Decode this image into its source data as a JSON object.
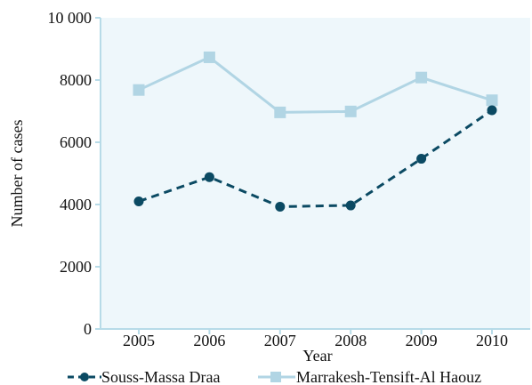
{
  "chart_data": {
    "type": "line",
    "title": "",
    "xlabel": "Year",
    "ylabel": "Number of cases",
    "x": [
      "2005",
      "2006",
      "2007",
      "2008",
      "2009",
      "2010"
    ],
    "ylim": [
      0,
      10000
    ],
    "y_ticks": [
      "0",
      "2000",
      "4000",
      "6000",
      "8000",
      "10 000"
    ],
    "grid": false,
    "legend_position": "bottom",
    "plot_background": "#eef7fb",
    "axis_color": "#b7dbe8",
    "series": [
      {
        "name": "Souss-Massa Draa",
        "values": [
          4100,
          4880,
          3930,
          3970,
          5470,
          7030
        ],
        "color": "#0b4a63",
        "line_style": "dashed",
        "marker": "circle"
      },
      {
        "name": "Marrakesh-Tensift-Al Haouz",
        "values": [
          7680,
          8730,
          6960,
          6990,
          8080,
          7350
        ],
        "color": "#b1d5e4",
        "line_style": "solid",
        "marker": "square"
      }
    ]
  }
}
